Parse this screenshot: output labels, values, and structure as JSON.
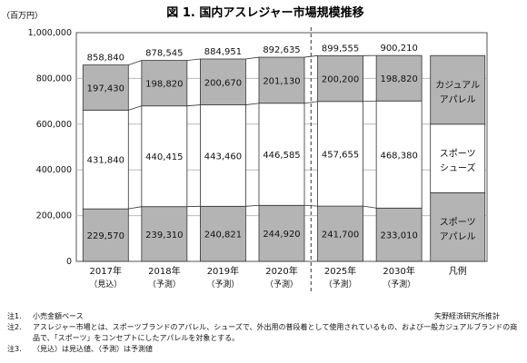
{
  "chart_data": {
    "type": "bar",
    "stacked": true,
    "title": "図 1. 国内アスレジャー市場規模推移",
    "unit_label": "（百万円）",
    "ylim": [
      0,
      1000000
    ],
    "ytick_step": 200000,
    "ytick_labels": [
      "0",
      "200,000",
      "400,000",
      "600,000",
      "800,000",
      "1,000,000"
    ],
    "categories": [
      "2017年",
      "2018年",
      "2019年",
      "2020年",
      "2025年",
      "2030年"
    ],
    "category_sublabels": [
      "（見込）",
      "（予測）",
      "（予測）",
      "（予測）",
      "（予測）",
      "（予測）"
    ],
    "series": [
      {
        "name": "スポーツアパレル",
        "values": [
          229570,
          239310,
          240821,
          244920,
          241700,
          233010
        ],
        "labels": [
          "229,570",
          "239,310",
          "240,821",
          "244,920",
          "241,700",
          "233,010"
        ],
        "color": "#b4b4b4"
      },
      {
        "name": "スポーツシューズ",
        "values": [
          431840,
          440415,
          443460,
          446585,
          457655,
          468380
        ],
        "labels": [
          "431,840",
          "440,415",
          "443,460",
          "446,585",
          "457,655",
          "468,380"
        ],
        "color": "#ffffff"
      },
      {
        "name": "カジュアルアパレル",
        "values": [
          197430,
          198820,
          200670,
          201130,
          200200,
          198820
        ],
        "labels": [
          "197,430",
          "198,820",
          "200,670",
          "201,130",
          "200,200",
          "198,820"
        ],
        "color": "#b4b4b4"
      }
    ],
    "totals": [
      858840,
      878545,
      884951,
      892635,
      899555,
      900210
    ],
    "total_labels": [
      "858,840",
      "878,545",
      "884,951",
      "892,635",
      "899,555",
      "900,210"
    ],
    "legend": {
      "title": "凡例",
      "items": [
        {
          "lines": [
            "スポーツ",
            "アパレル"
          ],
          "color": "#b4b4b4"
        },
        {
          "lines": [
            "スポーツ",
            "シューズ"
          ],
          "color": "#ffffff"
        },
        {
          "lines": [
            "カジュアル",
            "アパレル"
          ],
          "color": "#b4b4b4"
        }
      ]
    },
    "grid": true
  },
  "notes": [
    {
      "num": "注1.",
      "text": "小売金額ベース"
    },
    {
      "num": "注2.",
      "text": "アスレジャー市場とは、スポーツブランドのアパレル、シューズで、外出用の普段着として使用されているもの、および一般カジュアルブランドの商品で、「スポーツ」をコンセプトにしたアパレルを対象とする。"
    },
    {
      "num": "注3.",
      "text": "（見込）は見込値、（予測）は予測値"
    }
  ],
  "source": "矢野経済研究所推計"
}
